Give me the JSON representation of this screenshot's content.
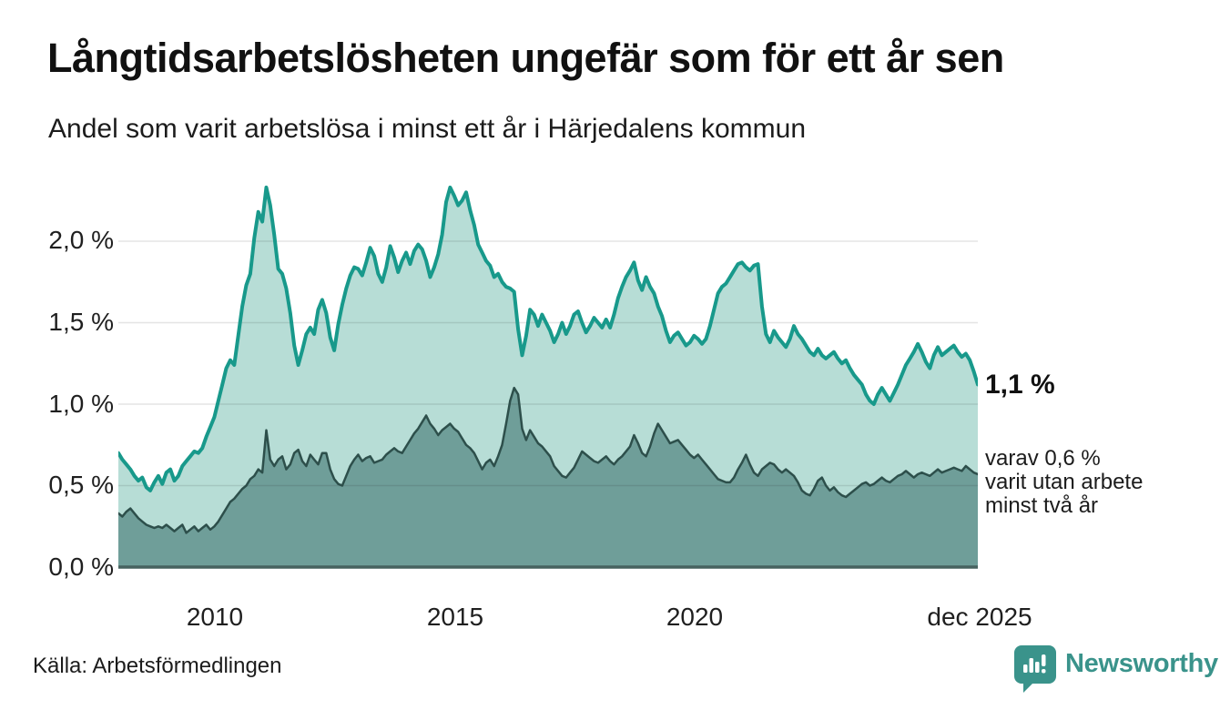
{
  "header": {
    "title": "Långtidsarbetslösheten ungefär som för ett år sen",
    "subtitle": "Andel som varit arbetslösa i minst ett år i Härjedalens kommun"
  },
  "footer": {
    "source": "Källa: Arbetsförmedlingen",
    "brand_name": "Newsworthy",
    "brand_color": "#3a938b"
  },
  "chart_data": {
    "type": "area",
    "title": "Långtidsarbetslösheten ungefär som för ett år sen",
    "subtitle": "Andel som varit arbetslösa i minst ett år i Härjedalens kommun",
    "x_start": "2008-01",
    "x_end": "2025-12",
    "interval": "monthly",
    "x_tick_labels": [
      "2010",
      "2015",
      "2020",
      "dec 2025"
    ],
    "y_ticks": [
      "0,0 %",
      "0,5 %",
      "1,0 %",
      "1,5 %",
      "2,0 %"
    ],
    "y_tick_values": [
      0,
      0.5,
      1.0,
      1.5,
      2.0
    ],
    "ylim": [
      0,
      2.4
    ],
    "grid": true,
    "grid_color": "rgba(30,30,30,0.12)",
    "axis_color": "#47625f",
    "end_labels": {
      "total": "1,1 %",
      "detail_line1": "varav 0,6 %",
      "detail_line2": "varit utan arbete",
      "detail_line3": "minst två år"
    },
    "series": [
      {
        "name": "Andel arbetslösa minst ett år",
        "line_color": "#18998b",
        "fill_color": "#b7ddd6",
        "line_width": 4,
        "values_pct": [
          0.7,
          0.66,
          0.63,
          0.6,
          0.56,
          0.53,
          0.55,
          0.49,
          0.47,
          0.52,
          0.56,
          0.51,
          0.58,
          0.6,
          0.53,
          0.56,
          0.62,
          0.65,
          0.68,
          0.71,
          0.7,
          0.73,
          0.8,
          0.86,
          0.92,
          1.02,
          1.12,
          1.22,
          1.27,
          1.24,
          1.42,
          1.6,
          1.73,
          1.8,
          2.02,
          2.18,
          2.12,
          2.33,
          2.22,
          2.04,
          1.83,
          1.8,
          1.71,
          1.56,
          1.36,
          1.24,
          1.33,
          1.43,
          1.47,
          1.43,
          1.58,
          1.64,
          1.56,
          1.41,
          1.33,
          1.49,
          1.61,
          1.71,
          1.79,
          1.84,
          1.83,
          1.79,
          1.87,
          1.96,
          1.91,
          1.8,
          1.75,
          1.84,
          1.97,
          1.9,
          1.81,
          1.88,
          1.93,
          1.86,
          1.94,
          1.98,
          1.95,
          1.88,
          1.78,
          1.84,
          1.92,
          2.04,
          2.24,
          2.33,
          2.28,
          2.22,
          2.25,
          2.3,
          2.19,
          2.1,
          1.98,
          1.93,
          1.88,
          1.85,
          1.78,
          1.8,
          1.75,
          1.72,
          1.71,
          1.69,
          1.46,
          1.3,
          1.42,
          1.58,
          1.55,
          1.48,
          1.55,
          1.5,
          1.45,
          1.38,
          1.43,
          1.5,
          1.43,
          1.48,
          1.55,
          1.57,
          1.5,
          1.44,
          1.48,
          1.53,
          1.5,
          1.47,
          1.52,
          1.47,
          1.55,
          1.65,
          1.72,
          1.78,
          1.82,
          1.87,
          1.76,
          1.7,
          1.78,
          1.72,
          1.68,
          1.6,
          1.54,
          1.45,
          1.38,
          1.42,
          1.44,
          1.4,
          1.36,
          1.38,
          1.42,
          1.4,
          1.37,
          1.4,
          1.48,
          1.58,
          1.68,
          1.72,
          1.74,
          1.78,
          1.82,
          1.86,
          1.87,
          1.84,
          1.82,
          1.85,
          1.86,
          1.6,
          1.43,
          1.38,
          1.45,
          1.41,
          1.38,
          1.35,
          1.4,
          1.48,
          1.43,
          1.4,
          1.36,
          1.32,
          1.3,
          1.34,
          1.3,
          1.28,
          1.3,
          1.32,
          1.28,
          1.25,
          1.27,
          1.22,
          1.18,
          1.15,
          1.12,
          1.06,
          1.02,
          1.0,
          1.06,
          1.1,
          1.06,
          1.02,
          1.07,
          1.12,
          1.18,
          1.24,
          1.28,
          1.32,
          1.37,
          1.32,
          1.26,
          1.22,
          1.3,
          1.35,
          1.3,
          1.32,
          1.34,
          1.36,
          1.32,
          1.29,
          1.31,
          1.27,
          1.2,
          1.12
        ]
      },
      {
        "name": "varav utan arbete minst två år",
        "line_color": "#2d4f4b",
        "fill_color": "#6f9e99",
        "line_width": 2.5,
        "values_pct": [
          0.33,
          0.31,
          0.34,
          0.36,
          0.33,
          0.3,
          0.28,
          0.26,
          0.25,
          0.24,
          0.25,
          0.24,
          0.26,
          0.24,
          0.22,
          0.24,
          0.26,
          0.21,
          0.23,
          0.25,
          0.22,
          0.24,
          0.26,
          0.23,
          0.25,
          0.28,
          0.32,
          0.36,
          0.4,
          0.42,
          0.45,
          0.48,
          0.5,
          0.54,
          0.56,
          0.6,
          0.58,
          0.84,
          0.66,
          0.62,
          0.66,
          0.68,
          0.6,
          0.63,
          0.7,
          0.72,
          0.65,
          0.62,
          0.69,
          0.66,
          0.63,
          0.7,
          0.7,
          0.6,
          0.54,
          0.51,
          0.5,
          0.56,
          0.62,
          0.66,
          0.69,
          0.65,
          0.67,
          0.68,
          0.64,
          0.65,
          0.66,
          0.69,
          0.71,
          0.73,
          0.71,
          0.7,
          0.74,
          0.78,
          0.82,
          0.85,
          0.89,
          0.93,
          0.88,
          0.85,
          0.81,
          0.84,
          0.86,
          0.88,
          0.85,
          0.83,
          0.79,
          0.75,
          0.73,
          0.7,
          0.65,
          0.6,
          0.64,
          0.66,
          0.62,
          0.68,
          0.75,
          0.88,
          1.02,
          1.1,
          1.06,
          0.85,
          0.78,
          0.84,
          0.8,
          0.76,
          0.74,
          0.71,
          0.68,
          0.62,
          0.59,
          0.56,
          0.55,
          0.58,
          0.61,
          0.66,
          0.71,
          0.69,
          0.67,
          0.65,
          0.64,
          0.66,
          0.68,
          0.65,
          0.63,
          0.66,
          0.68,
          0.71,
          0.74,
          0.81,
          0.76,
          0.7,
          0.68,
          0.74,
          0.82,
          0.88,
          0.84,
          0.8,
          0.76,
          0.77,
          0.78,
          0.75,
          0.72,
          0.69,
          0.67,
          0.69,
          0.66,
          0.63,
          0.6,
          0.57,
          0.54,
          0.53,
          0.52,
          0.52,
          0.55,
          0.6,
          0.64,
          0.69,
          0.63,
          0.58,
          0.56,
          0.6,
          0.62,
          0.64,
          0.63,
          0.6,
          0.58,
          0.6,
          0.58,
          0.56,
          0.52,
          0.47,
          0.45,
          0.44,
          0.48,
          0.53,
          0.55,
          0.5,
          0.47,
          0.49,
          0.46,
          0.44,
          0.43,
          0.45,
          0.47,
          0.49,
          0.51,
          0.52,
          0.5,
          0.51,
          0.53,
          0.55,
          0.53,
          0.52,
          0.54,
          0.56,
          0.57,
          0.59,
          0.57,
          0.55,
          0.57,
          0.58,
          0.57,
          0.56,
          0.58,
          0.6,
          0.58,
          0.59,
          0.6,
          0.61,
          0.6,
          0.59,
          0.62,
          0.6,
          0.58,
          0.57
        ]
      }
    ]
  }
}
